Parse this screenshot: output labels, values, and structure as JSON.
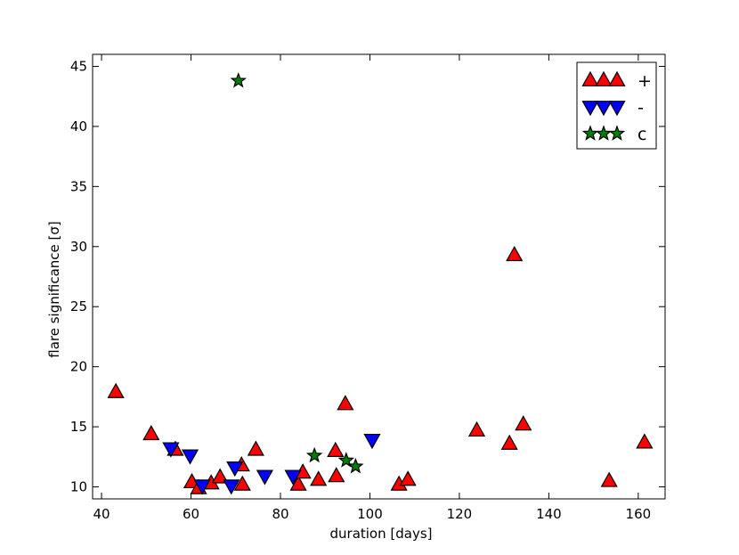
{
  "chart_data": {
    "type": "scatter",
    "title": "",
    "xlabel": "duration [days]",
    "ylabel": "flare significance [σ]",
    "xlim": [
      38,
      166
    ],
    "ylim": [
      9,
      46
    ],
    "xticks": [
      40,
      60,
      80,
      100,
      120,
      140,
      160
    ],
    "yticks": [
      10,
      15,
      20,
      25,
      30,
      35,
      40,
      45
    ],
    "grid": false,
    "legend_position": "top-right",
    "series": [
      {
        "name": "+",
        "marker": "triangle-up",
        "color": "#ff0000",
        "points": [
          [
            43.2,
            17.9
          ],
          [
            51.1,
            14.4
          ],
          [
            56.5,
            13.1
          ],
          [
            60.2,
            10.4
          ],
          [
            61.7,
            9.9
          ],
          [
            64.5,
            10.3
          ],
          [
            66.5,
            10.8
          ],
          [
            71.3,
            11.8
          ],
          [
            71.5,
            10.2
          ],
          [
            74.5,
            13.1
          ],
          [
            84.0,
            10.2
          ],
          [
            85.0,
            11.2
          ],
          [
            88.5,
            10.6
          ],
          [
            92.3,
            13.0
          ],
          [
            92.5,
            10.9
          ],
          [
            94.5,
            16.9
          ],
          [
            106.5,
            10.2
          ],
          [
            108.5,
            10.6
          ],
          [
            123.9,
            14.7
          ],
          [
            131.2,
            13.6
          ],
          [
            132.3,
            29.3
          ],
          [
            134.3,
            15.2
          ],
          [
            153.5,
            10.5
          ],
          [
            161.4,
            13.7
          ]
        ]
      },
      {
        "name": "-",
        "marker": "triangle-down",
        "color": "#0000ff",
        "points": [
          [
            55.5,
            13.2
          ],
          [
            59.8,
            12.6
          ],
          [
            62.5,
            10.1
          ],
          [
            69.0,
            10.1
          ],
          [
            69.8,
            11.6
          ],
          [
            76.5,
            10.9
          ],
          [
            82.8,
            10.9
          ],
          [
            100.5,
            13.9
          ]
        ]
      },
      {
        "name": "c",
        "marker": "star",
        "color": "#008000",
        "points": [
          [
            70.6,
            43.8
          ],
          [
            87.6,
            12.6
          ],
          [
            94.7,
            12.2
          ],
          [
            96.8,
            11.7
          ]
        ]
      }
    ]
  }
}
